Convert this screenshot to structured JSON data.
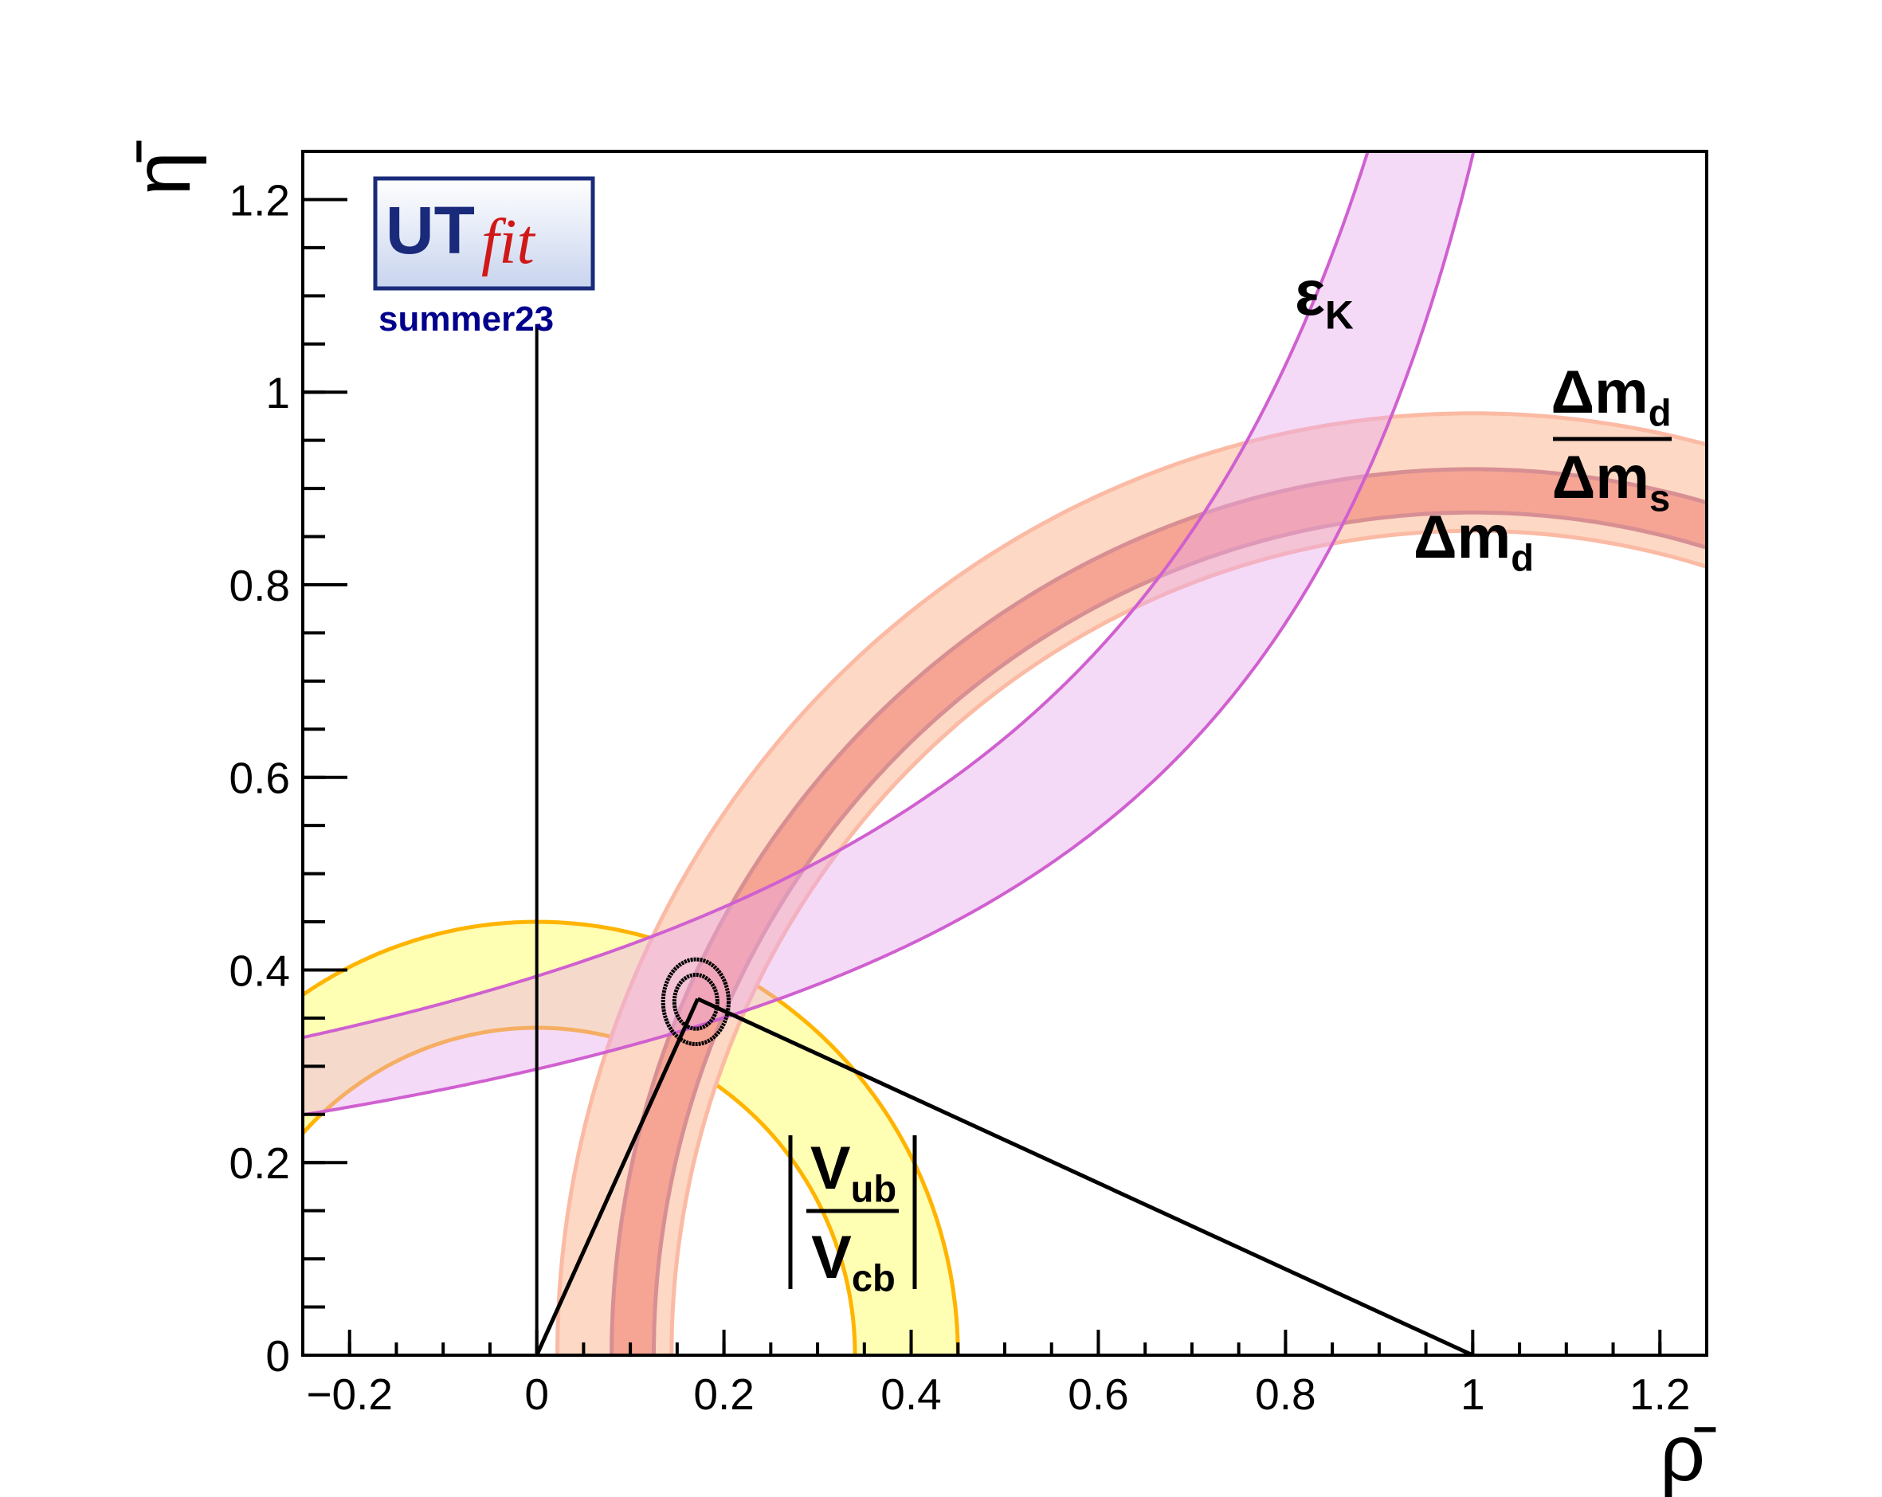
{
  "chart_data": {
    "type": "bands",
    "xlabel": "ρ̄",
    "ylabel": "η̄",
    "xlim": [
      -0.25,
      1.25
    ],
    "ylim": [
      0,
      1.25
    ],
    "xticks": [
      {
        "value": -0.2,
        "label": "−0.2"
      },
      0,
      0.2,
      0.4,
      0.6,
      0.8,
      1,
      1.2
    ],
    "yticks": [
      0,
      0.2,
      0.4,
      0.6,
      0.8,
      1,
      1.2
    ],
    "minor_step": 0.05,
    "bands": [
      {
        "shape": "circle",
        "center": [
          0,
          0
        ],
        "radii": [
          0.34,
          0.45
        ],
        "fill": "#ffffb4",
        "stroke": "#ffb400"
      },
      {
        "shape": "circle",
        "center": [
          1,
          0
        ],
        "radii": [
          0.856,
          0.978
        ],
        "fill": "#fdd8c4",
        "stroke": "#fbbaa4"
      },
      {
        "shape": "circle",
        "center": [
          1,
          0
        ],
        "radii": [
          0.875,
          0.92
        ],
        "fill": "#f6a494",
        "stroke": "#d78f93"
      },
      {
        "shape": "hyperbola",
        "k": [
          0.313,
          0.296
        ],
        "c": [
          0.39,
          0.51
        ],
        "fill": "#e7a8ec",
        "stroke": "#d060d0"
      }
    ],
    "contours": {
      "center": [
        0.17,
        0.367
      ],
      "radii": [
        [
          0.023,
          0.028
        ],
        [
          0.035,
          0.044
        ]
      ],
      "color": "#000000"
    },
    "triangle": [
      [
        0,
        0
      ],
      [
        1,
        0
      ],
      [
        0.172,
        0.37
      ]
    ],
    "vline": {
      "x": 0,
      "ylim": [
        0,
        1.07
      ]
    },
    "labels": {
      "eps_k": {
        "text": "ε",
        "sub": "K"
      },
      "dmd": {
        "text": "Δm",
        "sub": "d"
      },
      "ratio": {
        "num": {
          "text": "Δm",
          "sub": "d"
        },
        "den": {
          "text": "Δm",
          "sub": "s"
        }
      },
      "vub": {
        "num": {
          "text": "V",
          "sub": "ub"
        },
        "den": {
          "text": "V",
          "sub": "cb"
        }
      }
    },
    "logo": {
      "title": "UT",
      "subtitle": "fit",
      "season": "summer23"
    }
  }
}
